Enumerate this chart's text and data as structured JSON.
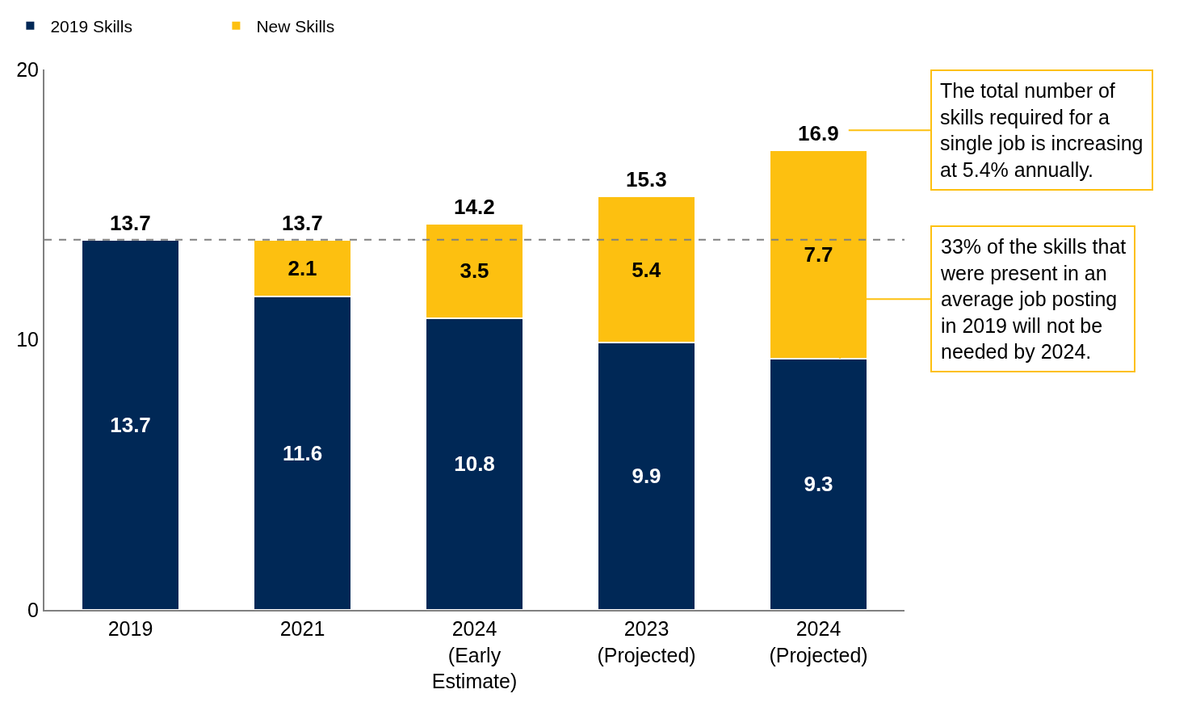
{
  "chart_data": {
    "type": "bar",
    "stacked": true,
    "categories": [
      "2019",
      "2021",
      "2024\n(Early\nEstimate)",
      "2023\n(Projected)",
      "2024\n(Projected)"
    ],
    "series": [
      {
        "name": "2019 Skills",
        "color": "#002856",
        "values": [
          13.7,
          11.6,
          10.8,
          9.9,
          9.3
        ]
      },
      {
        "name": "New Skills",
        "color": "#fdc010",
        "values": [
          null,
          2.1,
          3.5,
          5.4,
          7.7
        ]
      }
    ],
    "totals": [
      "13.7",
      "13.7",
      "14.2",
      "15.3",
      "16.9"
    ],
    "data_labels": true,
    "ylim": [
      0,
      20
    ],
    "yticks": [
      0,
      10,
      20
    ],
    "legend": "top left",
    "ref_lines": [
      {
        "axis": "y",
        "value": 13.7,
        "color": "#808080",
        "line_style": "dashed"
      }
    ],
    "annotations": [
      "The total number of\nskills required for a\nsingle job is increasing\nat 5.4% annually.",
      "33% of the skills that\nwere present in an\naverage job posting\nin 2019 will not be\nneeded by 2024."
    ]
  }
}
